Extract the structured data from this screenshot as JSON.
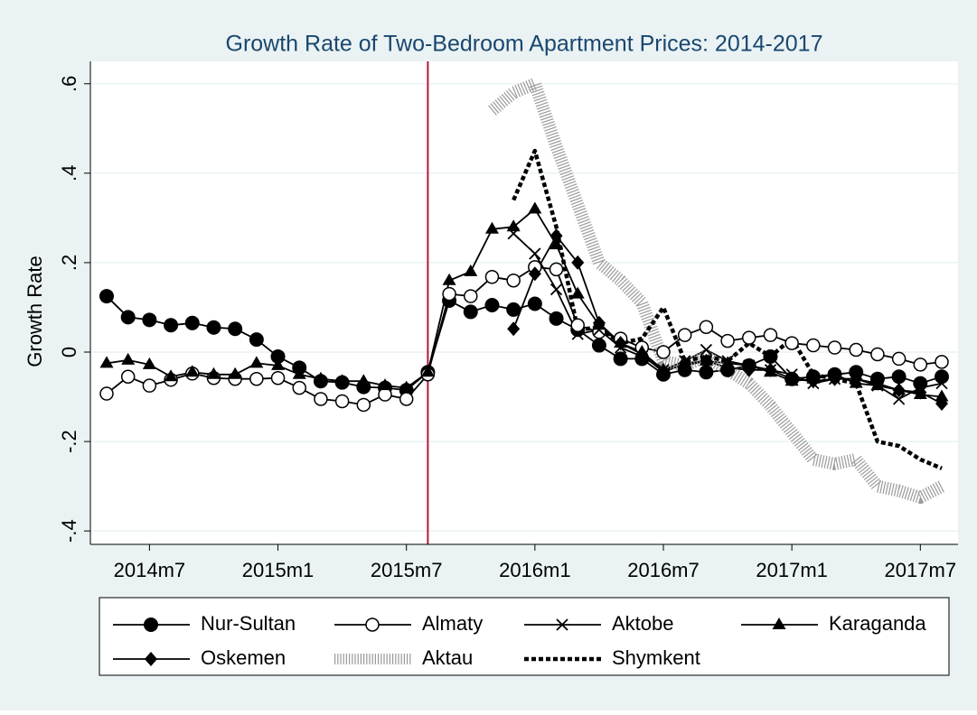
{
  "chart_data": {
    "type": "line",
    "title": "Growth Rate of Two-Bedroom Apartment Prices: 2014-2017",
    "y_label": "Growth Rate",
    "x": [
      "2014m5",
      "2014m6",
      "2014m7",
      "2014m8",
      "2014m9",
      "2014m10",
      "2014m11",
      "2014m12",
      "2015m1",
      "2015m2",
      "2015m3",
      "2015m4",
      "2015m5",
      "2015m6",
      "2015m7",
      "2015m8",
      "2015m9",
      "2015m10",
      "2015m11",
      "2015m12",
      "2016m1",
      "2016m2",
      "2016m3",
      "2016m4",
      "2016m5",
      "2016m6",
      "2016m7",
      "2016m8",
      "2016m9",
      "2016m10",
      "2016m11",
      "2016m12",
      "2017m1",
      "2017m2",
      "2017m3",
      "2017m4",
      "2017m5",
      "2017m6",
      "2017m7",
      "2017m8"
    ],
    "xticks": [
      "2014m7",
      "2015m1",
      "2015m7",
      "2016m1",
      "2016m7",
      "2017m1",
      "2017m7"
    ],
    "ylim": [
      -0.43,
      0.65
    ],
    "yticks": [
      {
        "value": 0.6,
        "label": ".6"
      },
      {
        "value": 0.4,
        "label": ".4"
      },
      {
        "value": 0.2,
        "label": ".2"
      },
      0,
      {
        "value": -0.2,
        "label": "-.2"
      },
      {
        "value": -0.4,
        "label": "-.4"
      }
    ],
    "grid": true,
    "vline": {
      "x": "2015m8",
      "color": "#b5173c"
    },
    "series": [
      {
        "name": "Nur-Sultan",
        "color": "#000000",
        "marker": "circle",
        "line_style": "solid",
        "values": [
          0.125,
          0.078,
          0.072,
          0.06,
          0.065,
          0.055,
          0.052,
          0.028,
          -0.01,
          -0.035,
          -0.065,
          -0.068,
          -0.078,
          -0.08,
          -0.085,
          -0.045,
          0.115,
          0.09,
          0.105,
          0.095,
          0.108,
          0.075,
          0.05,
          0.015,
          -0.015,
          -0.015,
          -0.05,
          -0.04,
          -0.045,
          -0.04,
          -0.03,
          -0.01,
          -0.06,
          -0.055,
          -0.05,
          -0.045,
          -0.06,
          -0.055,
          -0.07,
          -0.055
        ]
      },
      {
        "name": "Almaty",
        "color": "#000000",
        "marker": "hollow-circle",
        "line_style": "solid",
        "values": [
          -0.093,
          -0.055,
          -0.075,
          -0.062,
          -0.048,
          -0.058,
          -0.06,
          -0.06,
          -0.058,
          -0.08,
          -0.105,
          -0.11,
          -0.118,
          -0.095,
          -0.105,
          -0.05,
          0.13,
          0.125,
          0.168,
          0.16,
          0.19,
          0.185,
          0.06,
          0.045,
          0.03,
          0.01,
          0.0,
          0.038,
          0.056,
          0.025,
          0.032,
          0.038,
          0.02,
          0.015,
          0.01,
          0.005,
          -0.005,
          -0.015,
          -0.028,
          -0.022
        ]
      },
      {
        "name": "Aktobe",
        "color": "#000000",
        "marker": "x",
        "line_style": "solid",
        "values": [
          null,
          null,
          null,
          null,
          null,
          null,
          null,
          null,
          null,
          null,
          null,
          null,
          null,
          null,
          null,
          null,
          null,
          null,
          null,
          0.265,
          0.22,
          0.14,
          0.04,
          0.05,
          0.01,
          -0.01,
          -0.04,
          -0.02,
          0.005,
          -0.02,
          -0.03,
          -0.04,
          -0.05,
          -0.07,
          -0.06,
          -0.06,
          -0.075,
          -0.105,
          -0.08,
          -0.07
        ]
      },
      {
        "name": "Karaganda",
        "color": "#000000",
        "marker": "triangle",
        "line_style": "solid",
        "values": [
          -0.025,
          -0.018,
          -0.028,
          -0.055,
          -0.045,
          -0.05,
          -0.05,
          -0.025,
          -0.03,
          -0.05,
          -0.06,
          -0.065,
          -0.065,
          -0.075,
          -0.08,
          -0.045,
          0.16,
          0.18,
          0.275,
          0.28,
          0.32,
          0.24,
          0.13,
          0.06,
          0.02,
          0.0,
          -0.04,
          -0.03,
          -0.02,
          -0.025,
          -0.03,
          -0.045,
          -0.065,
          -0.06,
          -0.05,
          -0.07,
          -0.075,
          -0.085,
          -0.095,
          -0.1
        ]
      },
      {
        "name": "Oskemen",
        "color": "#000000",
        "marker": "diamond",
        "line_style": "solid",
        "values": [
          null,
          null,
          null,
          null,
          null,
          null,
          null,
          null,
          null,
          null,
          null,
          null,
          null,
          null,
          null,
          null,
          null,
          null,
          null,
          0.052,
          0.175,
          0.26,
          0.2,
          0.065,
          0.02,
          -0.005,
          -0.045,
          -0.025,
          -0.02,
          -0.035,
          -0.04,
          -0.04,
          -0.06,
          -0.065,
          -0.06,
          -0.06,
          -0.07,
          -0.085,
          -0.09,
          -0.115
        ]
      },
      {
        "name": "Aktau",
        "color": "#9a9a9a",
        "marker": "none",
        "line_style": "hatched",
        "values": [
          null,
          null,
          null,
          null,
          null,
          null,
          null,
          null,
          null,
          null,
          null,
          null,
          null,
          null,
          null,
          null,
          null,
          null,
          0.54,
          0.58,
          0.6,
          0.46,
          0.33,
          0.2,
          0.16,
          0.11,
          -0.02,
          -0.03,
          -0.01,
          -0.04,
          -0.07,
          -0.12,
          -0.18,
          -0.24,
          -0.25,
          -0.24,
          -0.3,
          -0.31,
          -0.325,
          -0.3
        ]
      },
      {
        "name": "Shymkent",
        "color": "#000000",
        "marker": "none",
        "line_style": "dotted",
        "values": [
          null,
          null,
          null,
          null,
          null,
          null,
          null,
          null,
          null,
          null,
          null,
          null,
          null,
          null,
          null,
          null,
          null,
          null,
          null,
          0.34,
          0.45,
          0.28,
          0.05,
          0.055,
          0.02,
          0.03,
          0.1,
          -0.02,
          -0.01,
          -0.02,
          0.02,
          -0.01,
          0.03,
          -0.05,
          -0.06,
          -0.07,
          -0.2,
          -0.21,
          -0.24,
          -0.26
        ]
      }
    ]
  }
}
